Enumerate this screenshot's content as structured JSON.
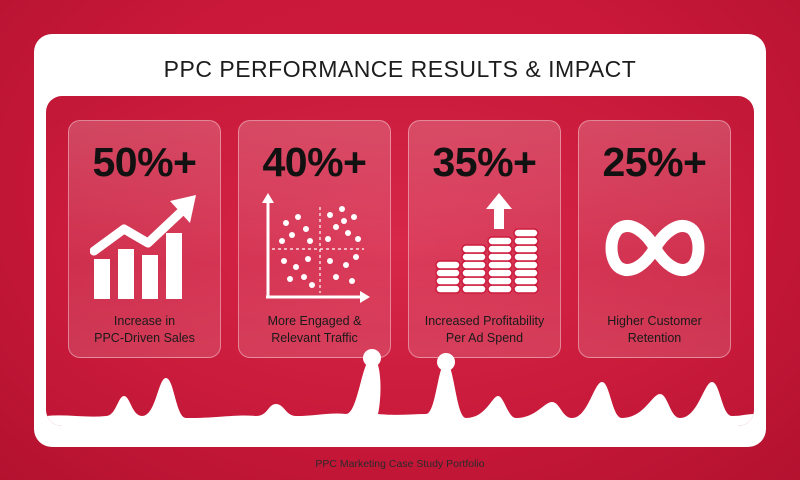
{
  "title": "PPC PERFORMANCE RESULTS & IMPACT",
  "cards": [
    {
      "stat": "50%+",
      "label_line1": "Increase in",
      "label_line2": "PPC-Driven Sales",
      "icon": "bar-chart-arrow-icon"
    },
    {
      "stat": "40%+",
      "label_line1": "More Engaged &",
      "label_line2": "Relevant Traffic",
      "icon": "scatter-plot-icon"
    },
    {
      "stat": "35%+",
      "label_line1": "Increased Profitability",
      "label_line2": "Per Ad Spend",
      "icon": "coin-stacks-arrow-icon"
    },
    {
      "stat": "25%+",
      "label_line1": "Higher Customer",
      "label_line2": "Retention",
      "icon": "infinity-icon"
    }
  ],
  "footer": "PPC Marketing Case Study Portfolio",
  "colors": {
    "background": "#c9183a",
    "panel": "#cc1c3d",
    "frame": "#ffffff",
    "text": "#111111"
  }
}
